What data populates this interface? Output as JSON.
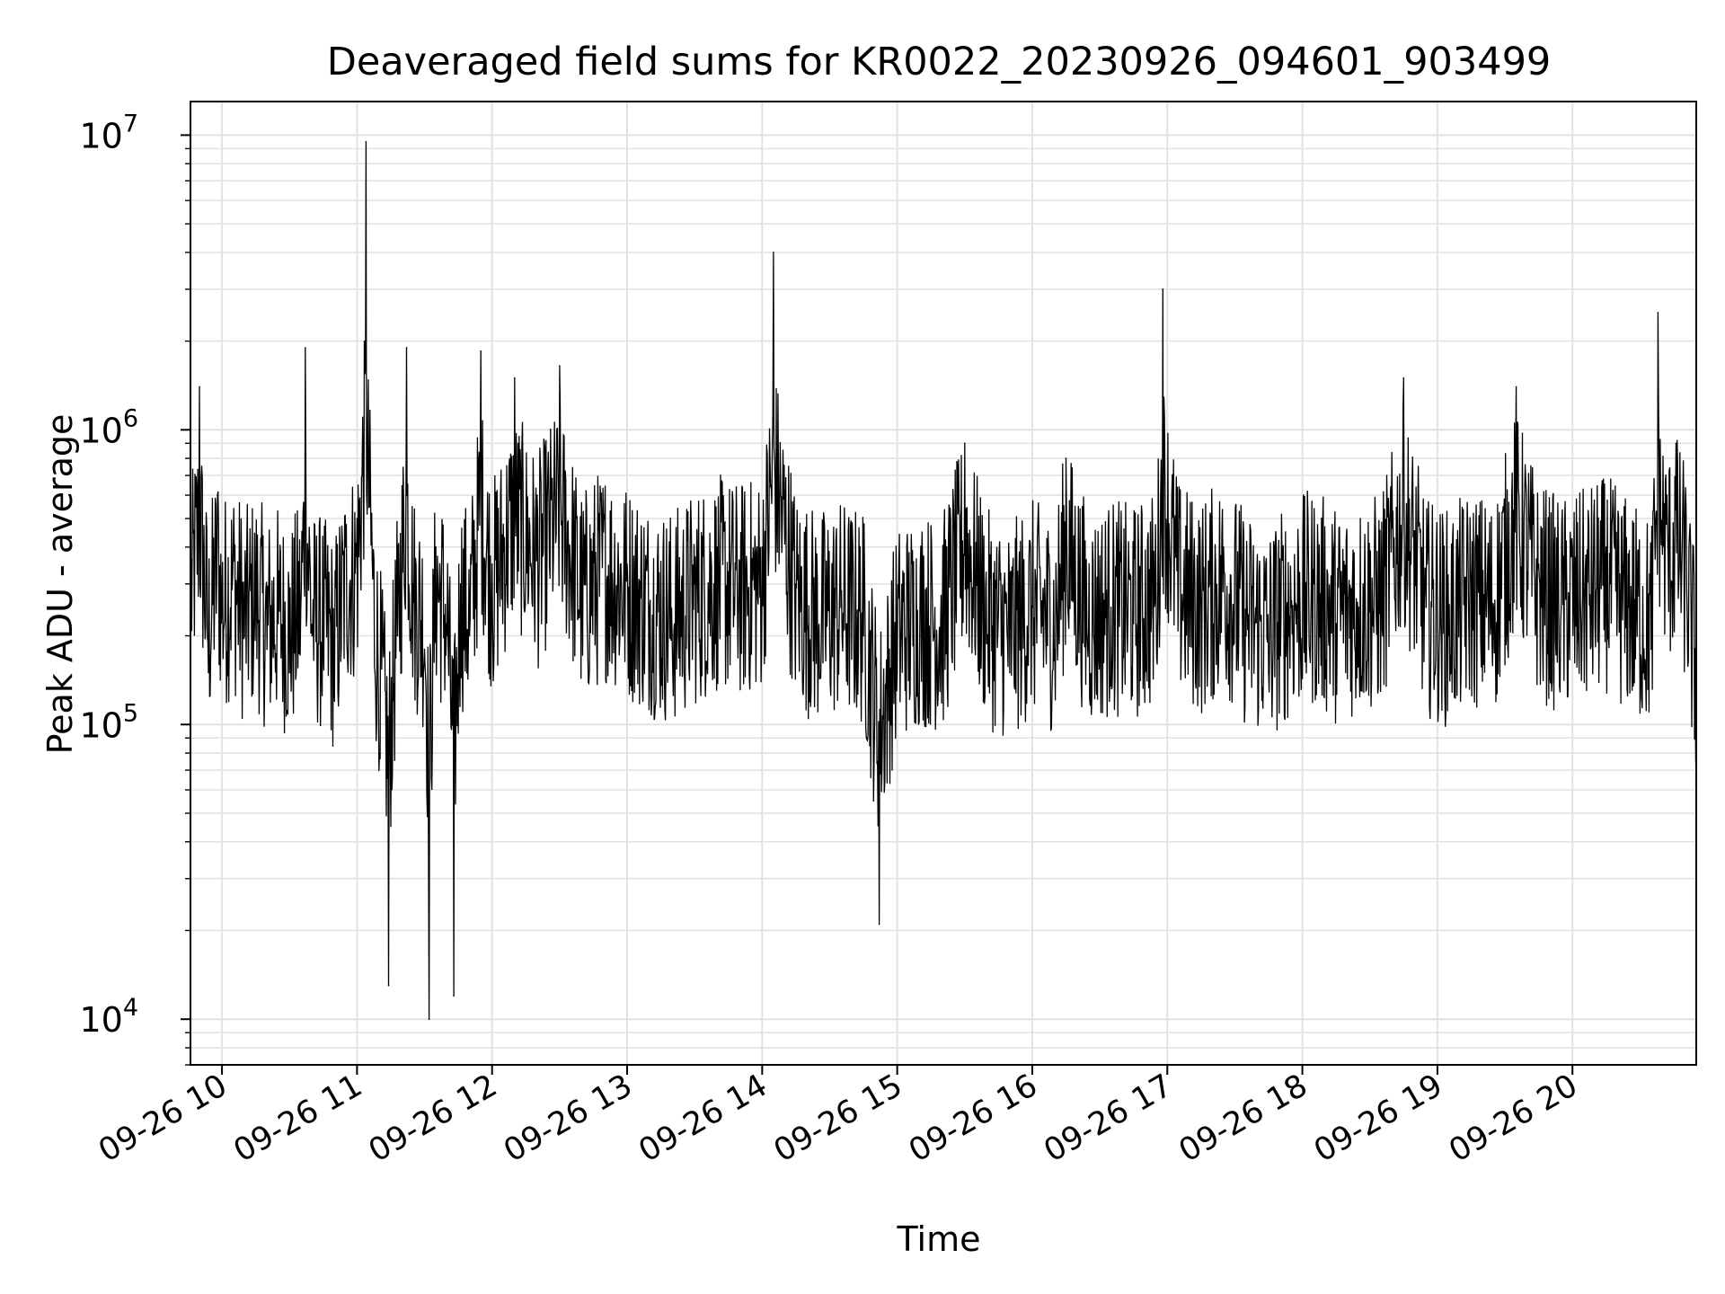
{
  "chart_data": {
    "type": "line",
    "title": "Deaveraged field sums for KR0022_20230926_094601_903499",
    "xlabel": "Time",
    "ylabel": "Peak ADU - average",
    "yscale": "log",
    "ylim": [
      7000,
      13000000
    ],
    "xlim": [
      "09-26 09:46",
      "09-26 20:55"
    ],
    "x_ticks": [
      "09-26 10",
      "09-26 11",
      "09-26 12",
      "09-26 13",
      "09-26 14",
      "09-26 15",
      "09-26 16",
      "09-26 17",
      "09-26 18",
      "09-26 19",
      "09-26 20"
    ],
    "y_ticks": [
      {
        "base": "10",
        "exp": "4",
        "value": 10000
      },
      {
        "base": "10",
        "exp": "5",
        "value": 100000
      },
      {
        "base": "10",
        "exp": "6",
        "value": 1000000
      },
      {
        "base": "10",
        "exp": "7",
        "value": 10000000
      }
    ],
    "grid": true,
    "line_color": "#000000",
    "series": [
      {
        "x": [
          "09-26 09:46",
          "09-26 09:50",
          "09-26 09:54",
          "09-26 09:58",
          "09-26 10:00",
          "09-26 10:05",
          "09-26 10:10",
          "09-26 10:15",
          "09-26 10:20",
          "09-26 10:25",
          "09-26 10:30",
          "09-26 10:35",
          "09-26 10:37",
          "09-26 10:40",
          "09-26 10:45",
          "09-26 10:50",
          "09-26 10:55",
          "09-26 11:00",
          "09-26 11:04",
          "09-26 11:08",
          "09-26 11:10",
          "09-26 11:14",
          "09-26 11:18",
          "09-26 11:22",
          "09-26 11:25",
          "09-26 11:30",
          "09-26 11:32",
          "09-26 11:35",
          "09-26 11:40",
          "09-26 11:43",
          "09-26 11:46",
          "09-26 11:50",
          "09-26 11:55",
          "09-26 12:00",
          "09-26 12:10",
          "09-26 12:20",
          "09-26 12:30",
          "09-26 12:40",
          "09-26 12:50",
          "09-26 13:00",
          "09-26 13:10",
          "09-26 13:20",
          "09-26 13:30",
          "09-26 13:40",
          "09-26 13:50",
          "09-26 14:00",
          "09-26 14:05",
          "09-26 14:15",
          "09-26 14:25",
          "09-26 14:35",
          "09-26 14:45",
          "09-26 14:52",
          "09-26 15:00",
          "09-26 15:10",
          "09-26 15:20",
          "09-26 15:30",
          "09-26 15:40",
          "09-26 15:50",
          "09-26 16:00",
          "09-26 16:10",
          "09-26 16:15",
          "09-26 16:25",
          "09-26 16:35",
          "09-26 16:45",
          "09-26 16:55",
          "09-26 16:58",
          "09-26 17:05",
          "09-26 17:15",
          "09-26 17:25",
          "09-26 17:35",
          "09-26 17:45",
          "09-26 17:55",
          "09-26 18:05",
          "09-26 18:15",
          "09-26 18:25",
          "09-26 18:35",
          "09-26 18:45",
          "09-26 18:55",
          "09-26 19:05",
          "09-26 19:15",
          "09-26 19:25",
          "09-26 19:35",
          "09-26 19:45",
          "09-26 19:55",
          "09-26 20:05",
          "09-26 20:15",
          "09-26 20:25",
          "09-26 20:35",
          "09-26 20:38",
          "09-26 20:42",
          "09-26 20:46",
          "09-26 20:50",
          "09-26 20:55"
        ],
        "y": [
          300000,
          1400000,
          150000,
          600000,
          250000,
          400000,
          200000,
          300000,
          180000,
          220000,
          150000,
          250000,
          1900000,
          200000,
          180000,
          120000,
          400000,
          500000,
          9500000,
          150000,
          80000,
          13000,
          200000,
          1900000,
          300000,
          180000,
          10000,
          400000,
          200000,
          12000,
          300000,
          200000,
          1850000,
          350000,
          1500000,
          600000,
          1650000,
          300000,
          500000,
          350000,
          250000,
          200000,
          300000,
          400000,
          350000,
          400000,
          4000000,
          300000,
          200000,
          250000,
          200000,
          21000,
          150000,
          200000,
          180000,
          900000,
          200000,
          150000,
          250000,
          180000,
          800000,
          200000,
          250000,
          220000,
          300000,
          3000000,
          350000,
          250000,
          400000,
          200000,
          150000,
          250000,
          300000,
          220000,
          250000,
          280000,
          1500000,
          250000,
          200000,
          300000,
          250000,
          1400000,
          350000,
          250000,
          300000,
          400000,
          250000,
          180000,
          2500000,
          600000,
          900000,
          500000,
          65000
        ]
      }
    ]
  }
}
